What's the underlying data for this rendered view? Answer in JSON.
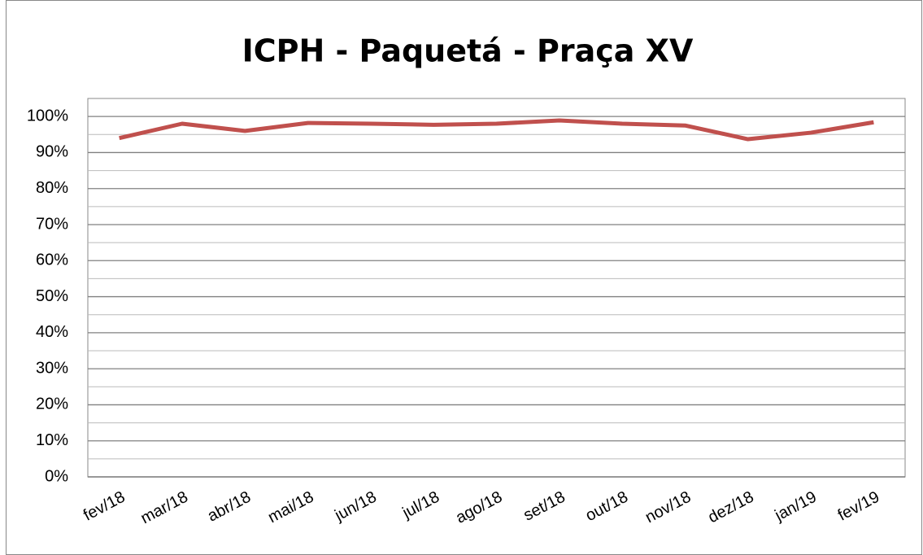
{
  "chart_data": {
    "type": "line",
    "title": "ICPH - Paquetá - Praça XV",
    "categories": [
      "fev/18",
      "mar/18",
      "abr/18",
      "mai/18",
      "jun/18",
      "jul/18",
      "ago/18",
      "set/18",
      "out/18",
      "nov/18",
      "dez/18",
      "jan/19",
      "fev/19"
    ],
    "series": [
      {
        "name": "ICPH",
        "color": "#c0504d",
        "values": [
          94,
          98,
          96,
          98.2,
          98,
          97.7,
          98,
          98.9,
          98,
          97.5,
          93.7,
          95.5,
          98.4
        ]
      }
    ],
    "ylim": [
      0,
      105
    ],
    "yticks": [
      {
        "value": 0,
        "label": "0%"
      },
      {
        "value": 10,
        "label": "10%"
      },
      {
        "value": 20,
        "label": "20%"
      },
      {
        "value": 30,
        "label": "30%"
      },
      {
        "value": 40,
        "label": "40%"
      },
      {
        "value": 50,
        "label": "50%"
      },
      {
        "value": 60,
        "label": "60%"
      },
      {
        "value": 70,
        "label": "70%"
      },
      {
        "value": 80,
        "label": "80%"
      },
      {
        "value": 90,
        "label": "90%"
      },
      {
        "value": 100,
        "label": "100%"
      }
    ],
    "minor_yticks": [
      5,
      15,
      25,
      35,
      45,
      55,
      65,
      75,
      85,
      95
    ],
    "grid": true
  }
}
